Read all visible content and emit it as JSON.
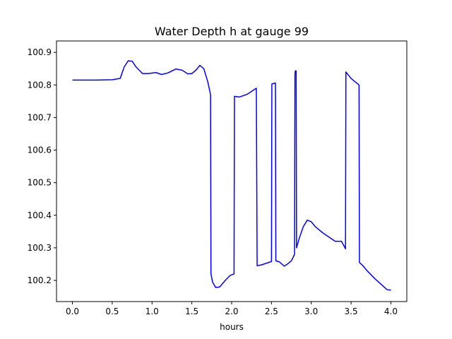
{
  "chart_data": {
    "type": "line",
    "title": "Water Depth h at gauge 99",
    "xlabel": "hours",
    "ylabel": "",
    "xlim": [
      -0.2,
      4.2
    ],
    "ylim": [
      100.135,
      100.935
    ],
    "xticks": [
      0.0,
      0.5,
      1.0,
      1.5,
      2.0,
      2.5,
      3.0,
      3.5,
      4.0
    ],
    "xtick_labels": [
      "0.0",
      "0.5",
      "1.0",
      "1.5",
      "2.0",
      "2.5",
      "3.0",
      "3.5",
      "4.0"
    ],
    "yticks": [
      100.2,
      100.3,
      100.4,
      100.5,
      100.6,
      100.7,
      100.8,
      100.9
    ],
    "ytick_labels": [
      "100.2",
      "100.3",
      "100.4",
      "100.5",
      "100.6",
      "100.7",
      "100.8",
      "100.9"
    ],
    "grid": false,
    "series": [
      {
        "color": "#0000ff",
        "x": [
          0.0,
          0.3,
          0.5,
          0.6,
          0.65,
          0.7,
          0.75,
          0.8,
          0.88,
          0.95,
          1.05,
          1.12,
          1.2,
          1.3,
          1.38,
          1.45,
          1.5,
          1.55,
          1.6,
          1.65,
          1.7,
          1.735,
          1.74,
          1.76,
          1.8,
          1.85,
          1.92,
          1.98,
          2.03,
          2.035,
          2.1,
          2.2,
          2.31,
          2.32,
          2.38,
          2.5,
          2.505,
          2.55,
          2.555,
          2.6,
          2.63,
          2.66,
          2.7,
          2.75,
          2.79,
          2.795,
          2.8,
          2.805,
          2.81,
          2.815,
          2.85,
          2.9,
          2.95,
          3.0,
          3.05,
          3.15,
          3.3,
          3.38,
          3.43,
          3.435,
          3.5,
          3.6,
          3.605,
          3.65,
          3.7,
          3.8,
          3.95,
          4.0
        ],
        "y": [
          100.815,
          100.815,
          100.816,
          100.82,
          100.855,
          100.874,
          100.873,
          100.855,
          100.835,
          100.835,
          100.838,
          100.832,
          100.837,
          100.849,
          100.845,
          100.834,
          100.835,
          100.845,
          100.86,
          100.85,
          100.81,
          100.77,
          100.22,
          100.195,
          100.178,
          100.18,
          100.2,
          100.215,
          100.22,
          100.765,
          100.763,
          100.772,
          100.79,
          100.245,
          100.248,
          100.258,
          100.803,
          100.806,
          100.26,
          100.257,
          100.25,
          100.244,
          100.25,
          100.26,
          100.28,
          100.832,
          100.843,
          100.843,
          100.843,
          100.3,
          100.33,
          100.365,
          100.385,
          100.38,
          100.365,
          100.345,
          100.32,
          100.32,
          100.297,
          100.84,
          100.82,
          100.8,
          100.255,
          100.245,
          100.23,
          100.205,
          100.172,
          100.17
        ]
      }
    ]
  }
}
